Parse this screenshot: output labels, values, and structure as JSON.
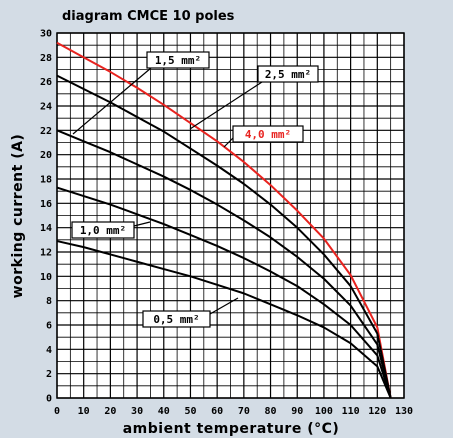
{
  "chart_data": {
    "type": "line",
    "title": "diagram CMCE 10 poles",
    "x_label": "ambient temperature (°C)",
    "y_label": "working current (A)",
    "x": [
      0,
      10,
      20,
      30,
      40,
      50,
      60,
      70,
      80,
      90,
      100,
      110,
      120,
      125
    ],
    "series": [
      {
        "name": "4,0 mm²",
        "color": "#e8231f",
        "values": [
          29.2,
          28.0,
          26.8,
          25.5,
          24.1,
          22.6,
          21.1,
          19.4,
          17.5,
          15.4,
          13.1,
          10.1,
          5.8,
          0
        ]
      },
      {
        "name": "2,5 mm²",
        "color": "#000000",
        "values": [
          26.5,
          25.4,
          24.3,
          23.1,
          21.9,
          20.5,
          19.1,
          17.6,
          15.9,
          14.0,
          11.8,
          9.2,
          5.3,
          0
        ]
      },
      {
        "name": "1,5 mm²",
        "color": "#000000",
        "values": [
          22,
          21.1,
          20.2,
          19.2,
          18.2,
          17.1,
          15.9,
          14.6,
          13.2,
          11.6,
          9.8,
          7.6,
          4.4,
          0
        ]
      },
      {
        "name": "1,0 mm²",
        "color": "#000000",
        "values": [
          17.3,
          16.6,
          15.9,
          15.1,
          14.3,
          13.4,
          12.5,
          11.5,
          10.4,
          9.2,
          7.7,
          6.0,
          3.5,
          0
        ]
      },
      {
        "name": "0,5 mm²",
        "color": "#000000",
        "values": [
          12.9,
          12.4,
          11.8,
          11.2,
          10.6,
          10.0,
          9.3,
          8.6,
          7.7,
          6.8,
          5.8,
          4.5,
          2.6,
          0
        ]
      }
    ],
    "xlim": [
      0,
      130
    ],
    "xticks": [
      0,
      10,
      20,
      30,
      40,
      50,
      60,
      70,
      80,
      90,
      100,
      110,
      120,
      130
    ],
    "ylim": [
      0,
      30
    ],
    "yticks": [
      0,
      2,
      4,
      6,
      8,
      10,
      12,
      14,
      16,
      18,
      20,
      22,
      24,
      26,
      28,
      30
    ],
    "grid": true
  }
}
